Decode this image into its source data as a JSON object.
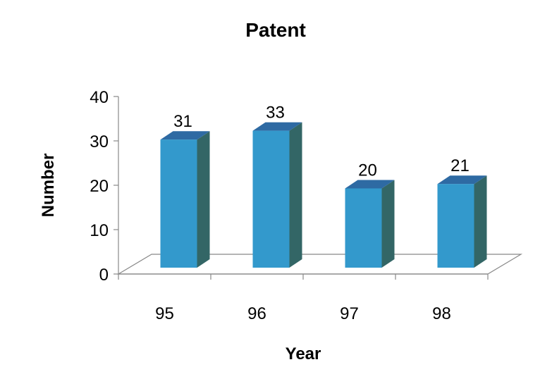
{
  "chart_data": {
    "type": "bar",
    "title": "Patent",
    "xlabel": "Year",
    "ylabel": "Number",
    "categories": [
      "95",
      "96",
      "97",
      "98"
    ],
    "values": [
      31,
      33,
      20,
      21
    ],
    "ylim": [
      0,
      40
    ],
    "yticks": [
      0,
      10,
      20,
      30,
      40
    ],
    "data_labels": [
      "31",
      "33",
      "20",
      "21"
    ],
    "grid": false,
    "legend": "none",
    "three_d": true,
    "colors": {
      "bar_front": "#3399CC",
      "bar_side": "#336666",
      "bar_top": "#2E6AA3",
      "floor": "#888888"
    }
  }
}
